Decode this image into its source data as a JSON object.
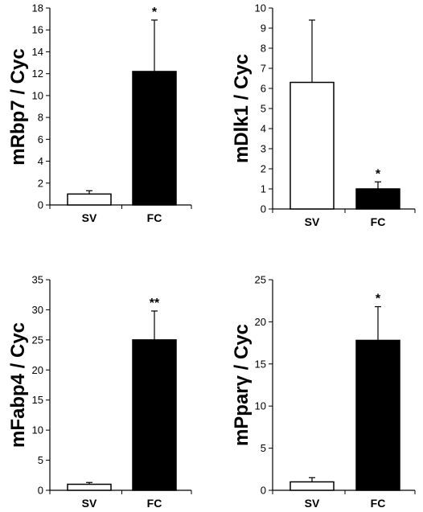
{
  "chart_data": [
    {
      "type": "bar",
      "ylabel": "mRbp7 / Cyc",
      "categories": [
        "SV",
        "FC"
      ],
      "values": [
        1.0,
        12.2
      ],
      "errors": [
        0.3,
        4.7
      ],
      "bar_colors": [
        "#ffffff",
        "#000000"
      ],
      "significance": [
        "",
        "*"
      ],
      "ylim": [
        0,
        18
      ],
      "yticks": [
        0,
        2,
        4,
        6,
        8,
        10,
        12,
        14,
        16,
        18
      ]
    },
    {
      "type": "bar",
      "ylabel": "mDlk1 / Cyc",
      "categories": [
        "SV",
        "FC"
      ],
      "values": [
        6.3,
        1.0
      ],
      "errors": [
        3.1,
        0.35
      ],
      "bar_colors": [
        "#ffffff",
        "#000000"
      ],
      "significance": [
        "",
        "*"
      ],
      "ylim": [
        0,
        10
      ],
      "yticks": [
        0,
        1,
        2,
        3,
        4,
        5,
        6,
        7,
        8,
        9,
        10
      ]
    },
    {
      "type": "bar",
      "ylabel": "mFabp4 / Cyc",
      "categories": [
        "SV",
        "FC"
      ],
      "values": [
        1.0,
        25.0
      ],
      "errors": [
        0.3,
        4.8
      ],
      "bar_colors": [
        "#ffffff",
        "#000000"
      ],
      "significance": [
        "",
        "**"
      ],
      "ylim": [
        0,
        35
      ],
      "yticks": [
        0,
        5,
        10,
        15,
        20,
        25,
        30,
        35
      ]
    },
    {
      "type": "bar",
      "ylabel": "mPparγ / Cyc",
      "categories": [
        "SV",
        "FC"
      ],
      "values": [
        1.0,
        17.8
      ],
      "errors": [
        0.5,
        4.0
      ],
      "bar_colors": [
        "#ffffff",
        "#000000"
      ],
      "significance": [
        "",
        "*"
      ],
      "ylim": [
        0,
        25
      ],
      "yticks": [
        0,
        5,
        10,
        15,
        20,
        25
      ]
    }
  ]
}
